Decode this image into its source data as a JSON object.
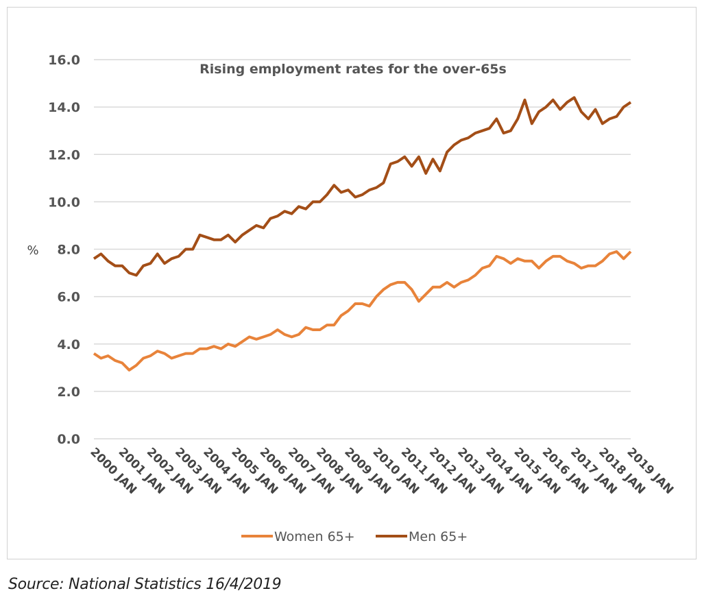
{
  "chart_data": {
    "type": "line",
    "title": "Rising employment rates for the over-65s",
    "ylabel": "%",
    "xlabel": "",
    "ylim": [
      0,
      16
    ],
    "yticks": [
      "0.0",
      "2.0",
      "4.0",
      "6.0",
      "8.0",
      "10.0",
      "12.0",
      "14.0",
      "16.0"
    ],
    "xticks": [
      "2000 JAN",
      "2001 JAN",
      "2002 JAN",
      "2003 JAN",
      "2004 JAN",
      "2005 JAN",
      "2006 JAN",
      "2007 JAN",
      "2008 JAN",
      "2009 JAN",
      "2010 JAN",
      "2011 JAN",
      "2012 JAN",
      "2013 JAN",
      "2014 JAN",
      "2015 JAN",
      "2016 JAN",
      "2017 JAN",
      "2018 JAN",
      "2019 JAN"
    ],
    "grid": true,
    "legend": "bottom",
    "x": [
      "2000-01",
      "2000-04",
      "2000-07",
      "2000-10",
      "2001-01",
      "2001-04",
      "2001-07",
      "2001-10",
      "2002-01",
      "2002-04",
      "2002-07",
      "2002-10",
      "2003-01",
      "2003-04",
      "2003-07",
      "2003-10",
      "2004-01",
      "2004-04",
      "2004-07",
      "2004-10",
      "2005-01",
      "2005-04",
      "2005-07",
      "2005-10",
      "2006-01",
      "2006-04",
      "2006-07",
      "2006-10",
      "2007-01",
      "2007-04",
      "2007-07",
      "2007-10",
      "2008-01",
      "2008-04",
      "2008-07",
      "2008-10",
      "2009-01",
      "2009-04",
      "2009-07",
      "2009-10",
      "2010-01",
      "2010-04",
      "2010-07",
      "2010-10",
      "2011-01",
      "2011-04",
      "2011-07",
      "2011-10",
      "2012-01",
      "2012-04",
      "2012-07",
      "2012-10",
      "2013-01",
      "2013-04",
      "2013-07",
      "2013-10",
      "2014-01",
      "2014-04",
      "2014-07",
      "2014-10",
      "2015-01",
      "2015-04",
      "2015-07",
      "2015-10",
      "2016-01",
      "2016-04",
      "2016-07",
      "2016-10",
      "2017-01",
      "2017-04",
      "2017-07",
      "2017-10",
      "2018-01",
      "2018-04",
      "2018-07",
      "2018-10",
      "2019-01"
    ],
    "series": [
      {
        "name": "Women 65+",
        "color": "#E8833A",
        "values": [
          3.6,
          3.4,
          3.5,
          3.3,
          3.2,
          2.9,
          3.1,
          3.4,
          3.5,
          3.7,
          3.6,
          3.4,
          3.5,
          3.6,
          3.6,
          3.8,
          3.8,
          3.9,
          3.8,
          4.0,
          3.9,
          4.1,
          4.3,
          4.2,
          4.3,
          4.4,
          4.6,
          4.4,
          4.3,
          4.4,
          4.7,
          4.6,
          4.6,
          4.8,
          4.8,
          5.2,
          5.4,
          5.7,
          5.7,
          5.6,
          6.0,
          6.3,
          6.5,
          6.6,
          6.6,
          6.3,
          5.8,
          6.1,
          6.4,
          6.4,
          6.6,
          6.4,
          6.6,
          6.7,
          6.9,
          7.2,
          7.3,
          7.7,
          7.6,
          7.4,
          7.6,
          7.5,
          7.5,
          7.2,
          7.5,
          7.7,
          7.7,
          7.5,
          7.4,
          7.2,
          7.3,
          7.3,
          7.5,
          7.8,
          7.9,
          7.6,
          7.9
        ]
      },
      {
        "name": "Men 65+",
        "color": "#A34E17",
        "values": [
          7.6,
          7.8,
          7.5,
          7.3,
          7.3,
          7.0,
          6.9,
          7.3,
          7.4,
          7.8,
          7.4,
          7.6,
          7.7,
          8.0,
          8.0,
          8.6,
          8.5,
          8.4,
          8.4,
          8.6,
          8.3,
          8.6,
          8.8,
          9.0,
          8.9,
          9.3,
          9.4,
          9.6,
          9.5,
          9.8,
          9.7,
          10.0,
          10.0,
          10.3,
          10.7,
          10.4,
          10.5,
          10.2,
          10.3,
          10.5,
          10.6,
          10.8,
          11.6,
          11.7,
          11.9,
          11.5,
          11.9,
          11.2,
          11.8,
          11.3,
          12.1,
          12.4,
          12.6,
          12.7,
          12.9,
          13.0,
          13.1,
          13.5,
          12.9,
          13.0,
          13.5,
          14.3,
          13.3,
          13.8,
          14.0,
          14.3,
          13.9,
          14.2,
          14.4,
          13.8,
          13.5,
          13.9,
          13.3,
          13.5,
          13.6,
          14.0,
          14.2
        ]
      }
    ]
  },
  "source": "Source: National Statistics 16/4/2019"
}
